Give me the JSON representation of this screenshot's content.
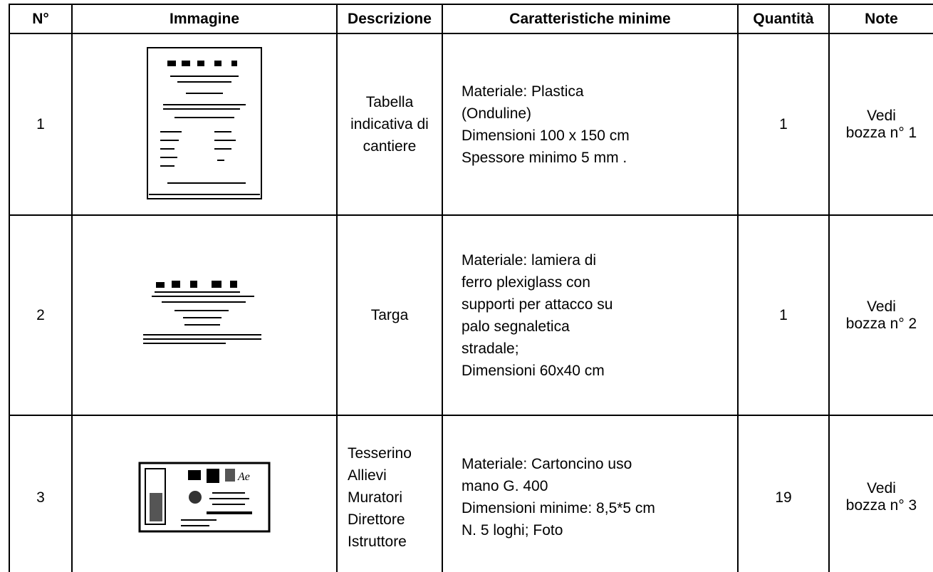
{
  "table": {
    "header": [
      "N°",
      "Immagine",
      "Descrizione",
      "Caratteristiche minime",
      "Quantità",
      "Note"
    ],
    "rows": [
      {
        "number": "1",
        "description": [
          "Tabella",
          "indicativa di",
          "cantiere"
        ],
        "features": [
          "Materiale: Plastica",
          "(Onduline)",
          "Dimensioni 100 x 150 cm",
          "Spessore minimo 5 mm ."
        ],
        "quantity": "1",
        "note": [
          "Vedi",
          "bozza n° 1"
        ]
      },
      {
        "number": "2",
        "description": [
          "Targa"
        ],
        "features": [
          "Materiale: lamiera di",
          "ferro plexiglass con",
          "supporti per attacco su",
          "palo segnaletica",
          "stradale;",
          "Dimensioni 60x40 cm"
        ],
        "quantity": "1",
        "note": [
          "Vedi",
          "bozza n° 2"
        ]
      },
      {
        "number": "3",
        "description": [
          "Tesserino",
          "Allievi",
          "Muratori",
          "Direttore",
          "Istruttore"
        ],
        "features": [
          "Materiale: Cartoncino uso",
          "mano G. 400",
          "Dimensioni minime: 8,5*5 cm",
          "N. 5 loghi; Foto"
        ],
        "quantity": "19",
        "note": [
          "Vedi",
          "bozza n° 3"
        ]
      }
    ]
  }
}
